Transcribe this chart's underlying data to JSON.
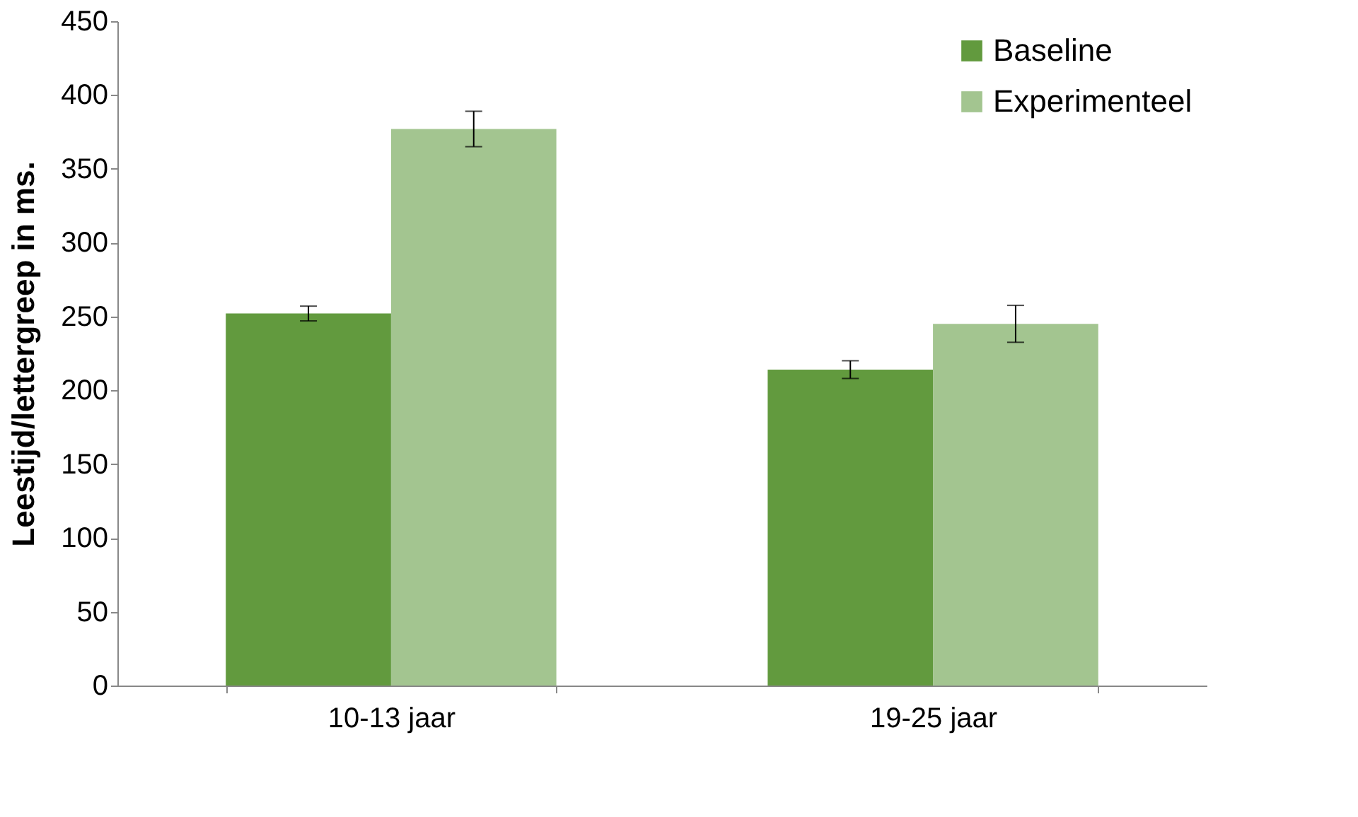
{
  "chart_data": {
    "type": "bar",
    "ylabel": "Leestijd/lettergreep in ms.",
    "categories": [
      "10-13 jaar",
      "19-25 jaar"
    ],
    "series": [
      {
        "name": "Baseline",
        "color": "#629a3e",
        "values": [
          252,
          214
        ],
        "errors": [
          5,
          6
        ]
      },
      {
        "name": "Experimenteel",
        "color": "#a3c590",
        "values": [
          377,
          245
        ],
        "errors": [
          12,
          12.5
        ]
      }
    ],
    "ylim": [
      0,
      450
    ],
    "yticks": [
      0,
      50,
      100,
      150,
      200,
      250,
      300,
      350,
      400,
      450
    ],
    "grid": false,
    "legend": "top right"
  }
}
